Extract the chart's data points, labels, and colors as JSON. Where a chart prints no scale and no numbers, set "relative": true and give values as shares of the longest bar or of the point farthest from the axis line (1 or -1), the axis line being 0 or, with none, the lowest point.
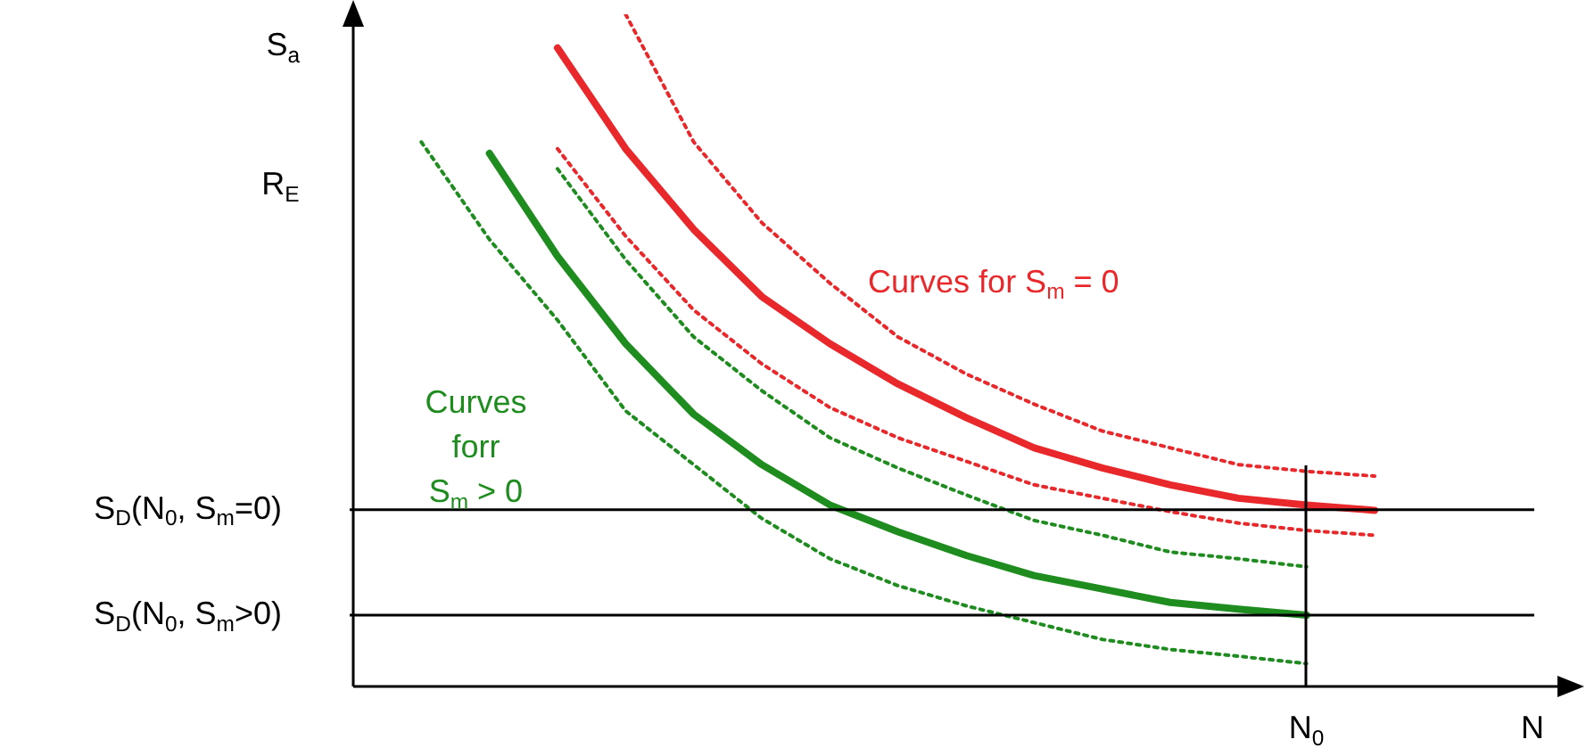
{
  "chart_data": {
    "type": "line",
    "xlabel": "N",
    "ylabel": "S$_{a}$",
    "legend": false,
    "categories": [
      null,
      null,
      null,
      null,
      null,
      null,
      null,
      null,
      null,
      null,
      null,
      null,
      null,
      null,
      null,
      null,
      null,
      null,
      null
    ],
    "relative": true,
    "series": [
      {
        "color": "#e8282b",
        "line_style": "solid",
        "values": [
          null,
          null,
          null,
          0.95,
          0.8,
          0.68,
          0.58,
          0.51,
          0.45,
          0.4,
          0.355,
          0.325,
          0.3,
          0.28,
          0.27,
          0.262,
          null,
          null,
          null
        ]
      },
      {
        "color": "#e8282b",
        "line_style": "dotted",
        "values": [
          null,
          null,
          null,
          null,
          1.0,
          0.81,
          0.69,
          0.6,
          0.52,
          0.465,
          0.42,
          0.38,
          0.355,
          0.33,
          0.32,
          0.313,
          null,
          null,
          null
        ]
      },
      {
        "color": "#e8282b",
        "line_style": "dotted",
        "values": [
          null,
          null,
          null,
          0.8,
          0.67,
          0.56,
          0.48,
          0.415,
          0.37,
          0.335,
          0.3,
          0.28,
          0.26,
          0.243,
          0.232,
          0.225,
          null,
          null,
          null
        ]
      },
      {
        "color": "#1e8c1e",
        "line_style": "solid",
        "values": [
          null,
          null,
          0.793,
          0.64,
          0.51,
          0.405,
          0.33,
          0.27,
          0.23,
          0.195,
          0.165,
          0.145,
          0.125,
          0.115,
          0.106,
          null,
          null,
          null,
          null
        ]
      },
      {
        "color": "#1e8c1e",
        "line_style": "dotted",
        "values": [
          null,
          null,
          null,
          0.77,
          0.635,
          0.52,
          0.44,
          0.37,
          0.325,
          0.285,
          0.247,
          0.225,
          0.2,
          0.19,
          0.178,
          null,
          null,
          null,
          null
        ]
      },
      {
        "color": "#1e8c1e",
        "line_style": "dotted",
        "values": [
          null,
          0.81,
          0.665,
          0.545,
          0.41,
          0.33,
          0.25,
          0.19,
          0.15,
          0.12,
          0.095,
          0.07,
          0.055,
          0.045,
          0.034,
          null,
          null,
          null,
          null
        ]
      }
    ],
    "ref_lines": [
      {
        "axis": "y",
        "value": 0.263,
        "label": "S$_{D}$(N$_{0}$, S$_{m}$=0)"
      },
      {
        "axis": "y",
        "value": 0.106,
        "label": "S$_{D}$(N$_{0}$, S$_{m}$>0)"
      }
    ],
    "annotations": [
      "R$_{E}$",
      "N$_{0}$",
      "Curves for S$_{m}$ = 0",
      "Curves\nforr\nS$_{m}$ > 0"
    ]
  }
}
